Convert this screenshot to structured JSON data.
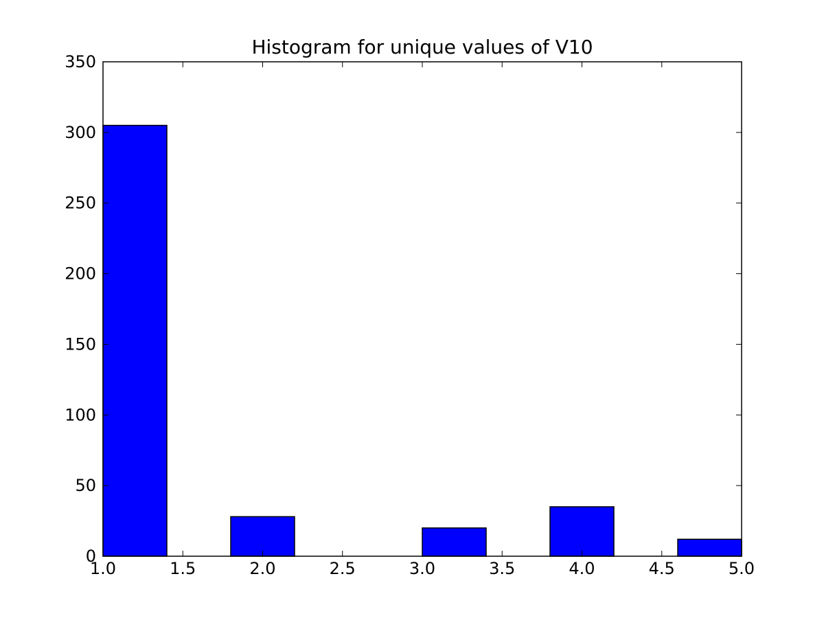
{
  "chart_data": {
    "type": "bar",
    "title": "Histogram for unique values of V10",
    "xlabel": "",
    "ylabel": "",
    "bins": [
      {
        "start": 1.0,
        "end": 1.4,
        "count": 305
      },
      {
        "start": 1.4,
        "end": 1.8,
        "count": 0
      },
      {
        "start": 1.8,
        "end": 2.2,
        "count": 28
      },
      {
        "start": 2.2,
        "end": 2.6,
        "count": 0
      },
      {
        "start": 2.6,
        "end": 3.0,
        "count": 0
      },
      {
        "start": 3.0,
        "end": 3.4,
        "count": 20
      },
      {
        "start": 3.4,
        "end": 3.8,
        "count": 0
      },
      {
        "start": 3.8,
        "end": 4.2,
        "count": 35
      },
      {
        "start": 4.2,
        "end": 4.6,
        "count": 0
      },
      {
        "start": 4.6,
        "end": 5.0,
        "count": 12
      }
    ],
    "xlim": [
      1.0,
      5.0
    ],
    "ylim": [
      0,
      350
    ],
    "xticks": [
      "1.0",
      "1.5",
      "2.0",
      "2.5",
      "3.0",
      "3.5",
      "4.0",
      "4.5",
      "5.0"
    ],
    "yticks": [
      "0",
      "50",
      "100",
      "150",
      "200",
      "250",
      "300",
      "350"
    ],
    "grid": false,
    "bar_color": "#0000ff",
    "edge_color": "#000000"
  }
}
